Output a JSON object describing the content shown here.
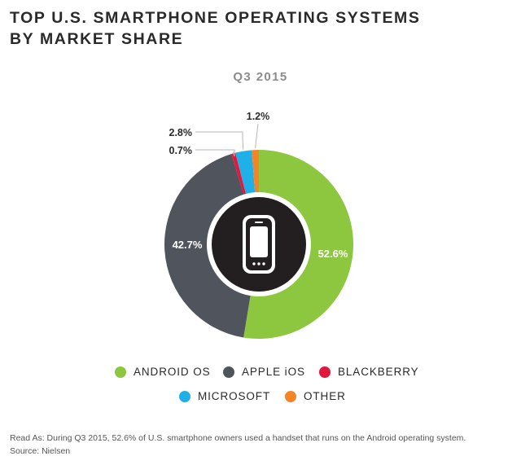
{
  "chart_data": {
    "type": "pie",
    "variant": "donut",
    "title_lines": [
      "TOP U.S. SMARTPHONE OPERATING SYSTEMS",
      "BY MARKET SHARE"
    ],
    "subtitle": "Q3 2015",
    "slices": [
      {
        "name": "ANDROID OS",
        "value": 52.6,
        "label": "52.6%",
        "color": "#8dc63f"
      },
      {
        "name": "APPLE iOS",
        "value": 42.7,
        "label": "42.7%",
        "color": "#50545c"
      },
      {
        "name": "BLACKBERRY",
        "value": 0.7,
        "label": "0.7%",
        "color": "#e2173d"
      },
      {
        "name": "MICROSOFT",
        "value": 2.8,
        "label": "2.8%",
        "color": "#1fb0e8"
      },
      {
        "name": "OTHER",
        "value": 1.2,
        "label": "1.2%",
        "color": "#f58426"
      }
    ],
    "center_icon": "smartphone-icon"
  },
  "footnote": {
    "read_as": "Read As: During Q3 2015, 52.6% of U.S. smartphone owners used a handset that runs on the Android operating system.",
    "source": "Source: Nielsen"
  }
}
